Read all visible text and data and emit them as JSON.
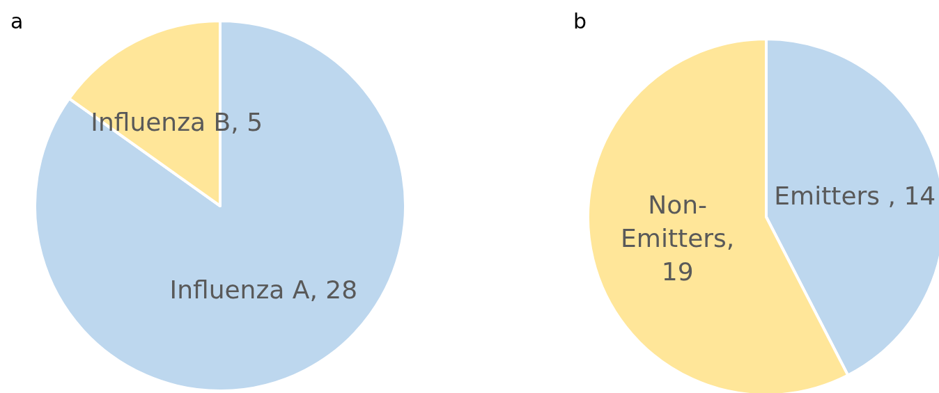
{
  "chart_data": [
    {
      "type": "pie",
      "title": "a",
      "categories": [
        "Influenza A",
        "Influenza B"
      ],
      "values": [
        28,
        5
      ],
      "colors": [
        "#bdd7ee",
        "#ffe699"
      ],
      "value_labels": [
        ", 28",
        ", 5"
      ]
    },
    {
      "type": "pie",
      "title": "b",
      "categories": [
        "Emitters ",
        "Non-Emitters"
      ],
      "values": [
        14,
        19
      ],
      "colors": [
        "#bdd7ee",
        "#ffe699"
      ],
      "value_labels": [
        ", 14",
        ", 19"
      ]
    }
  ]
}
